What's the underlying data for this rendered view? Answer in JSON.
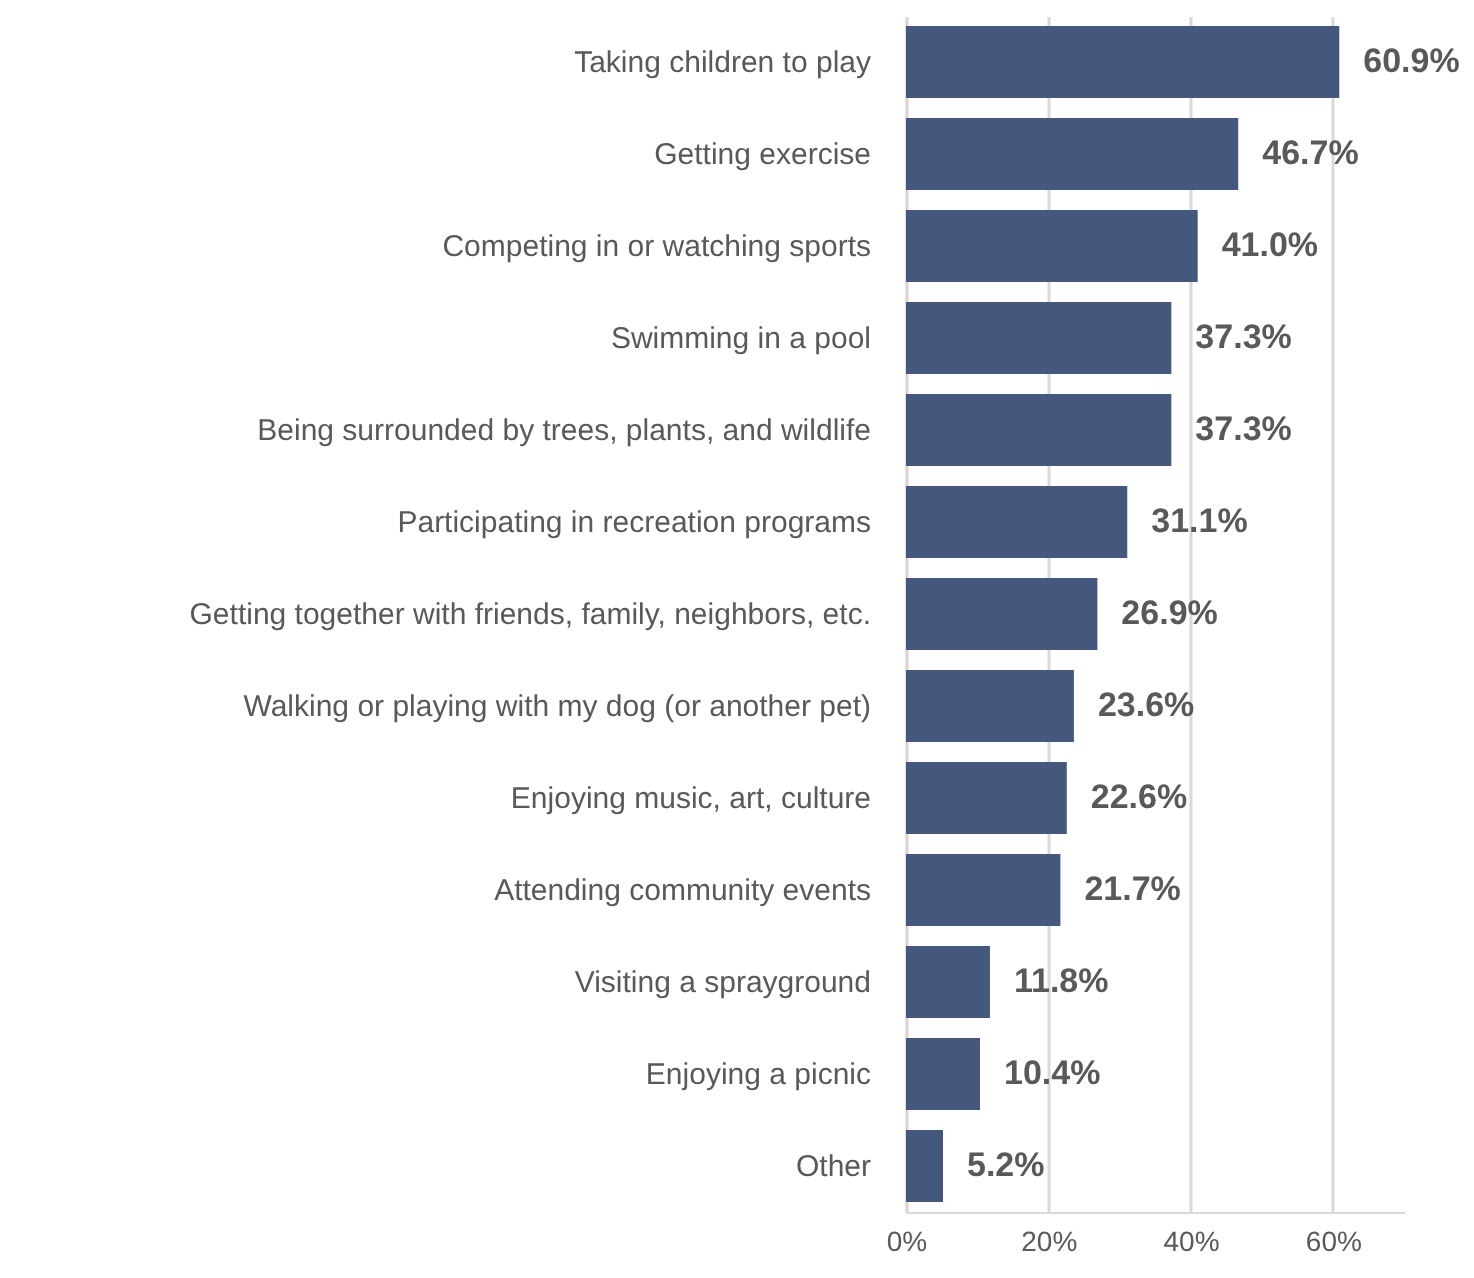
{
  "chart_data": {
    "type": "bar",
    "orientation": "horizontal",
    "categories": [
      "Taking children to play",
      "Getting exercise",
      "Competing in or watching sports",
      "Swimming in a pool",
      "Being surrounded by trees, plants, and wildlife",
      "Participating in recreation programs",
      "Getting together with friends, family, neighbors, etc.",
      "Walking or playing with my dog (or another pet)",
      "Enjoying music, art, culture",
      "Attending community events",
      "Visiting a sprayground",
      "Enjoying a picnic",
      "Other"
    ],
    "values": [
      60.9,
      46.7,
      41.0,
      37.3,
      37.3,
      31.1,
      26.9,
      23.6,
      22.6,
      21.7,
      11.8,
      10.4,
      5.2
    ],
    "value_labels": [
      "60.9%",
      "46.7%",
      "41.0%",
      "37.3%",
      "37.3%",
      "31.1%",
      "26.9%",
      "23.6%",
      "22.6%",
      "21.7%",
      "11.8%",
      "10.4%",
      "5.2%"
    ],
    "color": "#44587e",
    "xlim": [
      0,
      70
    ],
    "xticks": [
      {
        "value": 0,
        "label": "0%"
      },
      {
        "value": 20,
        "label": "20%"
      },
      {
        "value": 40,
        "label": "40%"
      },
      {
        "value": 60,
        "label": "60%"
      }
    ],
    "grid": "x"
  }
}
